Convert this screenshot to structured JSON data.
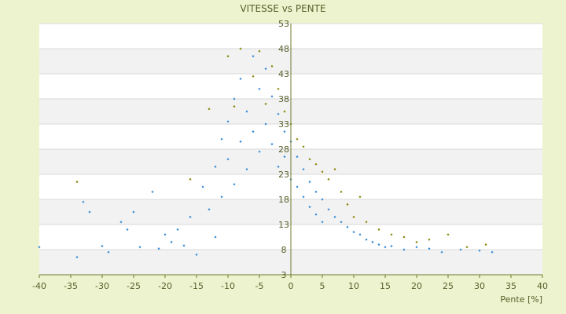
{
  "colors": {
    "page_background": "#eef3cf",
    "plot_background": "#ffffff",
    "band_stripe": "#f2f2f2",
    "grid_line": "#d9d9d9",
    "text": "#55602a",
    "series_blue": "#3c8fd6",
    "series_olive": "#8c8a10",
    "axis_line": "#6b7a2c"
  },
  "chart_data": {
    "type": "scatter",
    "title": "VITESSE vs PENTE",
    "xlabel": "Pente [%]",
    "ylabel": "",
    "xlim": [
      -40,
      40
    ],
    "ylim": [
      3,
      53
    ],
    "x_ticks": [
      "-40",
      "-35",
      "-30",
      "-25",
      "-20",
      "-15",
      "-10",
      "-5",
      "0",
      "5",
      "10",
      "15",
      "20",
      "25",
      "30",
      "35",
      "40"
    ],
    "y_ticks": [
      "3",
      "8",
      "13",
      "18",
      "23",
      "28",
      "33",
      "38",
      "43",
      "48",
      "53"
    ],
    "grid": true,
    "legend": "none",
    "series": [
      {
        "color": "#3c8fd6",
        "values": [
          {
            "x": -40,
            "y": 8.5
          },
          {
            "x": -34,
            "y": 6.5
          },
          {
            "x": -33,
            "y": 17.5
          },
          {
            "x": -32,
            "y": 15.5
          },
          {
            "x": -30,
            "y": 8.7
          },
          {
            "x": -29,
            "y": 7.5
          },
          {
            "x": -27,
            "y": 13.5
          },
          {
            "x": -26,
            "y": 12.0
          },
          {
            "x": -25,
            "y": 15.5
          },
          {
            "x": -24,
            "y": 8.5
          },
          {
            "x": -22,
            "y": 19.5
          },
          {
            "x": -21,
            "y": 8.2
          },
          {
            "x": -20,
            "y": 11.0
          },
          {
            "x": -19,
            "y": 9.5
          },
          {
            "x": -18,
            "y": 12.0
          },
          {
            "x": -17,
            "y": 8.8
          },
          {
            "x": -16,
            "y": 14.5
          },
          {
            "x": -15,
            "y": 7.0
          },
          {
            "x": -14,
            "y": 20.5
          },
          {
            "x": -13,
            "y": 16.0
          },
          {
            "x": -12,
            "y": 24.5
          },
          {
            "x": -12,
            "y": 10.5
          },
          {
            "x": -11,
            "y": 30.0
          },
          {
            "x": -11,
            "y": 18.5
          },
          {
            "x": -10,
            "y": 33.5
          },
          {
            "x": -10,
            "y": 26.0
          },
          {
            "x": -9,
            "y": 38.0
          },
          {
            "x": -9,
            "y": 21.0
          },
          {
            "x": -8,
            "y": 42.0
          },
          {
            "x": -8,
            "y": 29.5
          },
          {
            "x": -7,
            "y": 35.5
          },
          {
            "x": -7,
            "y": 24.0
          },
          {
            "x": -6,
            "y": 46.5
          },
          {
            "x": -6,
            "y": 31.5
          },
          {
            "x": -5,
            "y": 40.0
          },
          {
            "x": -5,
            "y": 27.5
          },
          {
            "x": -4,
            "y": 44.0
          },
          {
            "x": -4,
            "y": 33.0
          },
          {
            "x": -3,
            "y": 38.5
          },
          {
            "x": -3,
            "y": 29.0
          },
          {
            "x": -2,
            "y": 35.0
          },
          {
            "x": -2,
            "y": 24.5
          },
          {
            "x": -1,
            "y": 31.5
          },
          {
            "x": -1,
            "y": 26.5
          },
          {
            "x": 0,
            "y": 29.5
          },
          {
            "x": 0,
            "y": 22.0
          },
          {
            "x": 1,
            "y": 26.5
          },
          {
            "x": 1,
            "y": 20.5
          },
          {
            "x": 2,
            "y": 24.0
          },
          {
            "x": 2,
            "y": 18.5
          },
          {
            "x": 3,
            "y": 21.5
          },
          {
            "x": 3,
            "y": 16.5
          },
          {
            "x": 4,
            "y": 19.5
          },
          {
            "x": 4,
            "y": 15.0
          },
          {
            "x": 5,
            "y": 18.0
          },
          {
            "x": 5,
            "y": 13.5
          },
          {
            "x": 6,
            "y": 16.0
          },
          {
            "x": 7,
            "y": 14.5
          },
          {
            "x": 8,
            "y": 13.5
          },
          {
            "x": 9,
            "y": 12.5
          },
          {
            "x": 10,
            "y": 11.5
          },
          {
            "x": 11,
            "y": 11.0
          },
          {
            "x": 12,
            "y": 10.0
          },
          {
            "x": 13,
            "y": 9.5
          },
          {
            "x": 14,
            "y": 9.0
          },
          {
            "x": 15,
            "y": 8.5
          },
          {
            "x": 16,
            "y": 8.7
          },
          {
            "x": 18,
            "y": 8.0
          },
          {
            "x": 20,
            "y": 8.5
          },
          {
            "x": 22,
            "y": 8.2
          },
          {
            "x": 24,
            "y": 7.5
          },
          {
            "x": 27,
            "y": 8.0
          },
          {
            "x": 30,
            "y": 7.8
          },
          {
            "x": 32,
            "y": 7.5
          }
        ]
      },
      {
        "color": "#8c8a10",
        "values": [
          {
            "x": -34,
            "y": 21.5
          },
          {
            "x": -16,
            "y": 22.0
          },
          {
            "x": -13,
            "y": 36.0
          },
          {
            "x": -10,
            "y": 46.5
          },
          {
            "x": -9,
            "y": 36.5
          },
          {
            "x": -8,
            "y": 48.0
          },
          {
            "x": -6,
            "y": 42.5
          },
          {
            "x": -5,
            "y": 47.5
          },
          {
            "x": -4,
            "y": 37.0
          },
          {
            "x": -3,
            "y": 44.5
          },
          {
            "x": -2,
            "y": 40.0
          },
          {
            "x": -1,
            "y": 35.5
          },
          {
            "x": 0,
            "y": 33.0
          },
          {
            "x": 1,
            "y": 30.0
          },
          {
            "x": 2,
            "y": 28.5
          },
          {
            "x": 3,
            "y": 26.0
          },
          {
            "x": 4,
            "y": 25.0
          },
          {
            "x": 5,
            "y": 23.5
          },
          {
            "x": 6,
            "y": 22.0
          },
          {
            "x": 7,
            "y": 24.0
          },
          {
            "x": 8,
            "y": 19.5
          },
          {
            "x": 9,
            "y": 17.0
          },
          {
            "x": 10,
            "y": 14.5
          },
          {
            "x": 11,
            "y": 18.5
          },
          {
            "x": 12,
            "y": 13.5
          },
          {
            "x": 14,
            "y": 12.0
          },
          {
            "x": 16,
            "y": 11.0
          },
          {
            "x": 18,
            "y": 10.5
          },
          {
            "x": 20,
            "y": 9.5
          },
          {
            "x": 22,
            "y": 10.0
          },
          {
            "x": 25,
            "y": 11.0
          },
          {
            "x": 28,
            "y": 8.5
          },
          {
            "x": 31,
            "y": 9.0
          }
        ]
      }
    ]
  }
}
